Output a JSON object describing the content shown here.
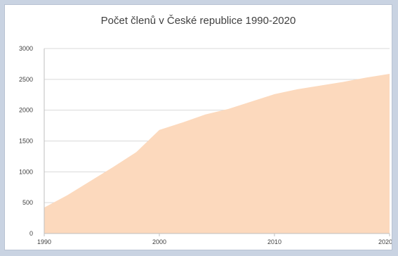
{
  "chart_data": {
    "type": "area",
    "title": "Počet členů v České republice 1990-2020",
    "xlabel": "",
    "ylabel": "",
    "x": [
      1990,
      1992,
      1994,
      1996,
      1998,
      2000,
      2002,
      2004,
      2006,
      2008,
      2010,
      2012,
      2014,
      2016,
      2018,
      2020
    ],
    "series": [
      {
        "values": [
          420,
          620,
          850,
          1080,
          1320,
          1680,
          1800,
          1930,
          2020,
          2140,
          2260,
          2340,
          2400,
          2460,
          2530,
          2590
        ]
      }
    ],
    "xlim": [
      1990,
      2020
    ],
    "ylim": [
      0,
      3000
    ],
    "y_ticks": [
      "0",
      "500",
      "1000",
      "1500",
      "2000",
      "2500",
      "3000"
    ],
    "x_ticks": [
      "1990",
      "2000",
      "2010",
      "2020"
    ],
    "grid": "horizontal",
    "legend": "none",
    "colors": {
      "fill": "#fcd9bd",
      "grid": "#d9d9d9",
      "axis": "#bfbfbf",
      "background": "#c9d3e2"
    }
  }
}
